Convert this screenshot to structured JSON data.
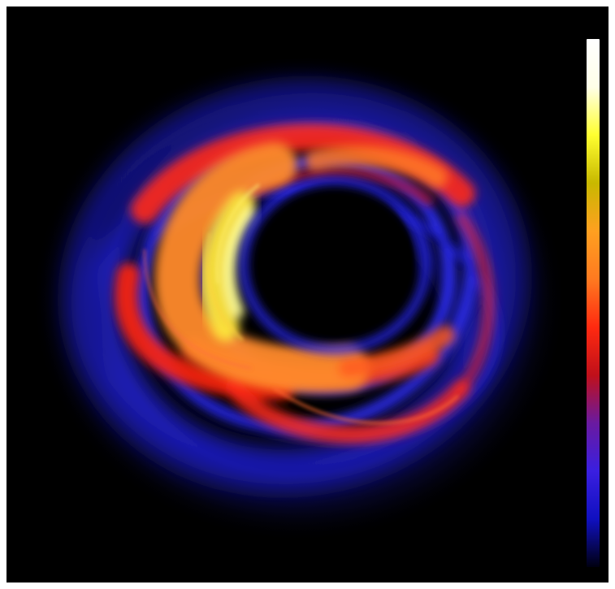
{
  "image": {
    "subject": "glowing-accretion-ring",
    "background_color": "#000000",
    "frame_color": "#ffffff"
  },
  "colorbar": {
    "orientation": "vertical",
    "stops": [
      "#000010",
      "#1010c0",
      "#3a1fe0",
      "#6a1aa0",
      "#c0101a",
      "#ff2a10",
      "#ff7a20",
      "#ffa020",
      "#c8b800",
      "#ffff30",
      "#ffffe8",
      "#ffffff"
    ]
  },
  "palette": {
    "blue": "#2a2cf0",
    "red": "#ff2a14",
    "orange": "#ff8a2a",
    "yellow": "#ffe63a",
    "white": "#ffffe0"
  }
}
